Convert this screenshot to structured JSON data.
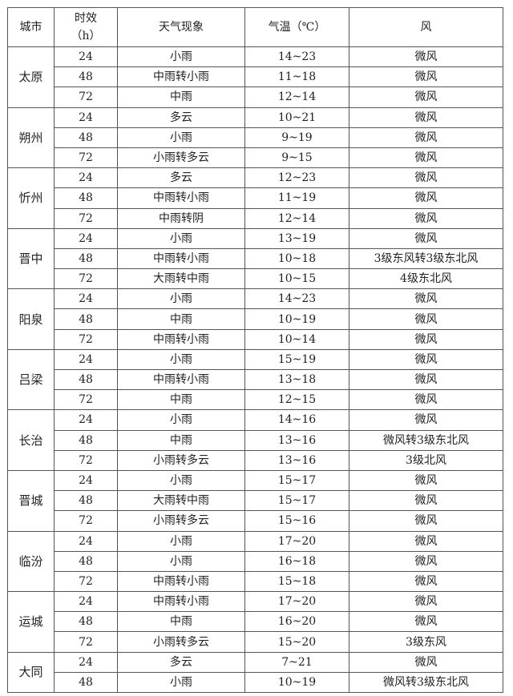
{
  "header": {
    "city": "城市",
    "hours_line1": "时效",
    "hours_line2": "（h）",
    "weather": "天气现象",
    "temp": "气温（℃）",
    "wind": "风"
  },
  "cities": [
    {
      "name": "太原",
      "rows": [
        [
          "24",
          "小雨",
          "14~23",
          "微风"
        ],
        [
          "48",
          "中雨转小雨",
          "11~18",
          "微风"
        ],
        [
          "72",
          "中雨",
          "12~14",
          "微风"
        ]
      ]
    },
    {
      "name": "朔州",
      "rows": [
        [
          "24",
          "多云",
          "10~21",
          "微风"
        ],
        [
          "48",
          "小雨",
          "9~19",
          "微风"
        ],
        [
          "72",
          "小雨转多云",
          "9~15",
          "微风"
        ]
      ]
    },
    {
      "name": "忻州",
      "rows": [
        [
          "24",
          "多云",
          "12~23",
          "微风"
        ],
        [
          "48",
          "中雨转小雨",
          "11~19",
          "微风"
        ],
        [
          "72",
          "中雨转阴",
          "12~14",
          "微风"
        ]
      ]
    },
    {
      "name": "晋中",
      "rows": [
        [
          "24",
          "小雨",
          "13~19",
          "微风"
        ],
        [
          "48",
          "中雨转小雨",
          "10~18",
          "3级东风转3级东北风"
        ],
        [
          "72",
          "大雨转中雨",
          "10~15",
          "4级东北风"
        ]
      ]
    },
    {
      "name": "阳泉",
      "rows": [
        [
          "24",
          "小雨",
          "14~23",
          "微风"
        ],
        [
          "48",
          "中雨",
          "10~19",
          "微风"
        ],
        [
          "72",
          "中雨转小雨",
          "10~14",
          "微风"
        ]
      ]
    },
    {
      "name": "吕梁",
      "rows": [
        [
          "24",
          "小雨",
          "15~19",
          "微风"
        ],
        [
          "48",
          "中雨转小雨",
          "13~18",
          "微风"
        ],
        [
          "72",
          "中雨",
          "12~15",
          "微风"
        ]
      ]
    },
    {
      "name": "长治",
      "rows": [
        [
          "24",
          "小雨",
          "14~16",
          "微风"
        ],
        [
          "48",
          "中雨",
          "13~16",
          "微风转3级东北风"
        ],
        [
          "72",
          "小雨转多云",
          "13~16",
          "3级北风"
        ]
      ]
    },
    {
      "name": "晋城",
      "rows": [
        [
          "24",
          "小雨",
          "15~17",
          "微风"
        ],
        [
          "48",
          "大雨转中雨",
          "15~17",
          "微风"
        ],
        [
          "72",
          "小雨转多云",
          "15~16",
          "微风"
        ]
      ]
    },
    {
      "name": "临汾",
      "rows": [
        [
          "24",
          "小雨",
          "17~20",
          "微风"
        ],
        [
          "48",
          "小雨",
          "16~18",
          "微风"
        ],
        [
          "72",
          "中雨转小雨",
          "15~18",
          "微风"
        ]
      ]
    },
    {
      "name": "运城",
      "rows": [
        [
          "24",
          "中雨转小雨",
          "17~20",
          "微风"
        ],
        [
          "48",
          "中雨",
          "16~20",
          "微风"
        ],
        [
          "72",
          "小雨转多云",
          "15~20",
          "3级东风"
        ]
      ]
    },
    {
      "name": "大同",
      "rows": [
        [
          "24",
          "多云",
          "7~21",
          "微风"
        ],
        [
          "48",
          "小雨",
          "10~19",
          "微风转3级东北风"
        ]
      ]
    }
  ]
}
